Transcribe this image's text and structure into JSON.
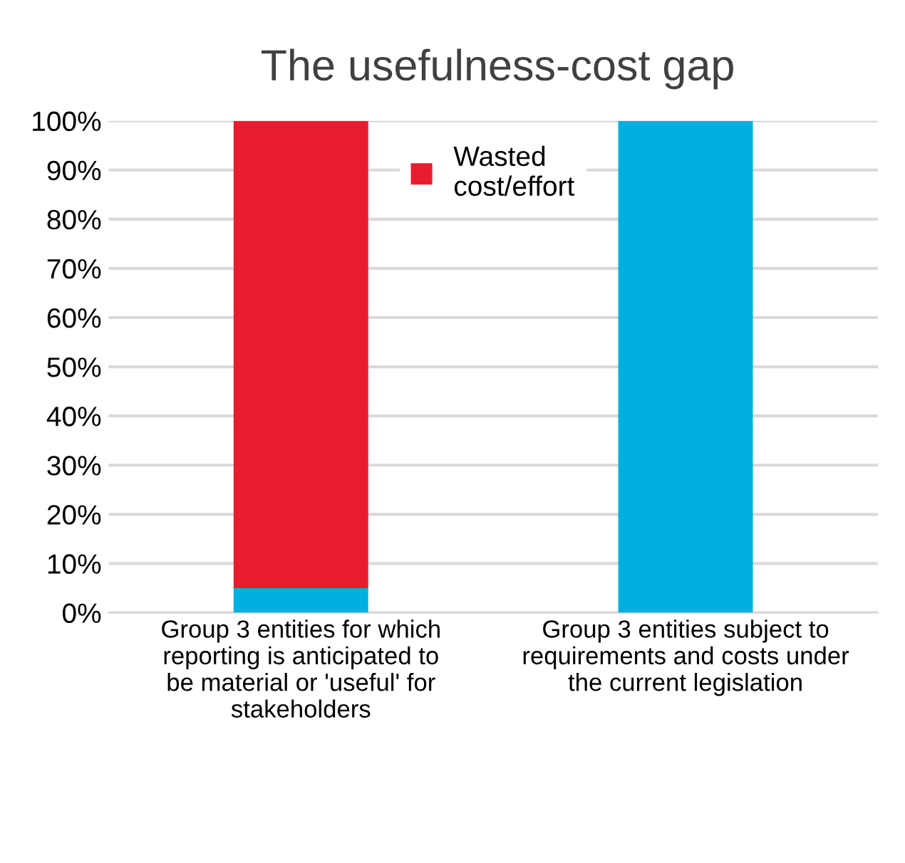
{
  "chart_data": {
    "type": "bar",
    "title": "The usefulness-cost gap",
    "stacked": true,
    "categories": [
      "Group 3 entities for which reporting is anticipated to be material or 'useful' for stakeholders",
      "Group 3 entities subject to requirements and costs under the current legislation"
    ],
    "series": [
      {
        "color": "#00b0e0",
        "values": [
          5,
          100
        ]
      },
      {
        "name": "Wasted cost/effort",
        "color": "#e81c2e",
        "values": [
          95,
          0
        ]
      }
    ],
    "ylim": [
      0,
      100
    ],
    "yticks": [
      {
        "value": 0,
        "label": "0%"
      },
      {
        "value": 10,
        "label": "10%"
      },
      {
        "value": 20,
        "label": "20%"
      },
      {
        "value": 30,
        "label": "30%"
      },
      {
        "value": 40,
        "label": "40%"
      },
      {
        "value": 50,
        "label": "50%"
      },
      {
        "value": 60,
        "label": "60%"
      },
      {
        "value": 70,
        "label": "70%"
      },
      {
        "value": 80,
        "label": "80%"
      },
      {
        "value": 90,
        "label": "90%"
      },
      {
        "value": 100,
        "label": "100%"
      }
    ],
    "grid": "y",
    "legend": "top"
  }
}
